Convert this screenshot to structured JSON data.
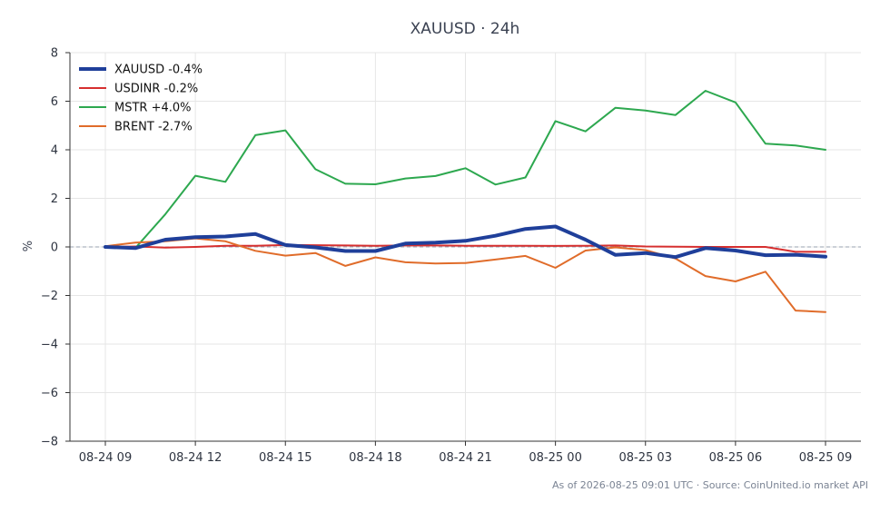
{
  "chart_data": {
    "type": "line",
    "title": "XAUUSD · 24h",
    "ylabel": "%",
    "xlabel": "",
    "ylim": [
      -8,
      8
    ],
    "y_ticks": [
      "8",
      "6",
      "4",
      "2",
      "0",
      "−2",
      "−4",
      "−6",
      "−8"
    ],
    "x_ticks": [
      "08-24 09",
      "08-24 12",
      "08-24 15",
      "08-24 18",
      "08-24 21",
      "08-25 00",
      "08-25 03",
      "08-25 06",
      "08-25 09"
    ],
    "x": [
      "08-24 09",
      "08-24 10",
      "08-24 11",
      "08-24 12",
      "08-24 13",
      "08-24 14",
      "08-24 15",
      "08-24 16",
      "08-24 17",
      "08-24 18",
      "08-24 19",
      "08-24 20",
      "08-24 21",
      "08-24 22",
      "08-24 23",
      "08-25 00",
      "08-25 01",
      "08-25 02",
      "08-25 03",
      "08-25 04",
      "08-25 05",
      "08-25 06",
      "08-25 07",
      "08-25 08",
      "08-25 09"
    ],
    "grid": true,
    "zero_line": true,
    "legend_position": "top-left",
    "series": [
      {
        "name": "XAUUSD -0.4%",
        "color": "#1f3f9a",
        "emphasis": true,
        "values": [
          0.0,
          -0.05,
          0.3,
          0.4,
          0.43,
          0.53,
          0.08,
          -0.02,
          -0.17,
          -0.17,
          0.14,
          0.18,
          0.25,
          0.46,
          0.74,
          0.84,
          0.3,
          -0.33,
          -0.25,
          -0.42,
          -0.05,
          -0.15,
          -0.34,
          -0.32,
          -0.4
        ]
      },
      {
        "name": "USDINR -0.2%",
        "color": "#d62f2f",
        "values": [
          0.0,
          0.02,
          -0.03,
          0.0,
          0.05,
          0.05,
          0.08,
          0.07,
          0.06,
          0.05,
          0.06,
          0.06,
          0.05,
          0.05,
          0.05,
          0.04,
          0.05,
          0.06,
          0.02,
          0.01,
          0.0,
          0.0,
          0.0,
          -0.2,
          -0.2
        ]
      },
      {
        "name": "MSTR +4.0%",
        "color": "#2da84f",
        "values": [
          0.0,
          -0.05,
          1.35,
          2.93,
          2.68,
          4.6,
          4.8,
          3.2,
          2.6,
          2.58,
          2.82,
          2.92,
          3.24,
          2.57,
          2.86,
          5.18,
          4.76,
          5.73,
          5.62,
          5.43,
          6.43,
          5.95,
          4.25,
          4.18,
          4.0
        ]
      },
      {
        "name": "BRENT -2.7%",
        "color": "#e06c2a",
        "values": [
          0.03,
          0.18,
          0.23,
          0.35,
          0.23,
          -0.16,
          -0.36,
          -0.25,
          -0.78,
          -0.43,
          -0.63,
          -0.68,
          -0.66,
          -0.52,
          -0.37,
          -0.86,
          -0.15,
          -0.02,
          -0.13,
          -0.48,
          -1.2,
          -1.42,
          -1.02,
          -2.62,
          -2.68
        ]
      }
    ]
  },
  "footer": {
    "source_text": "As of 2026-08-25 09:01 UTC · Source: CoinUnited.io market API"
  }
}
